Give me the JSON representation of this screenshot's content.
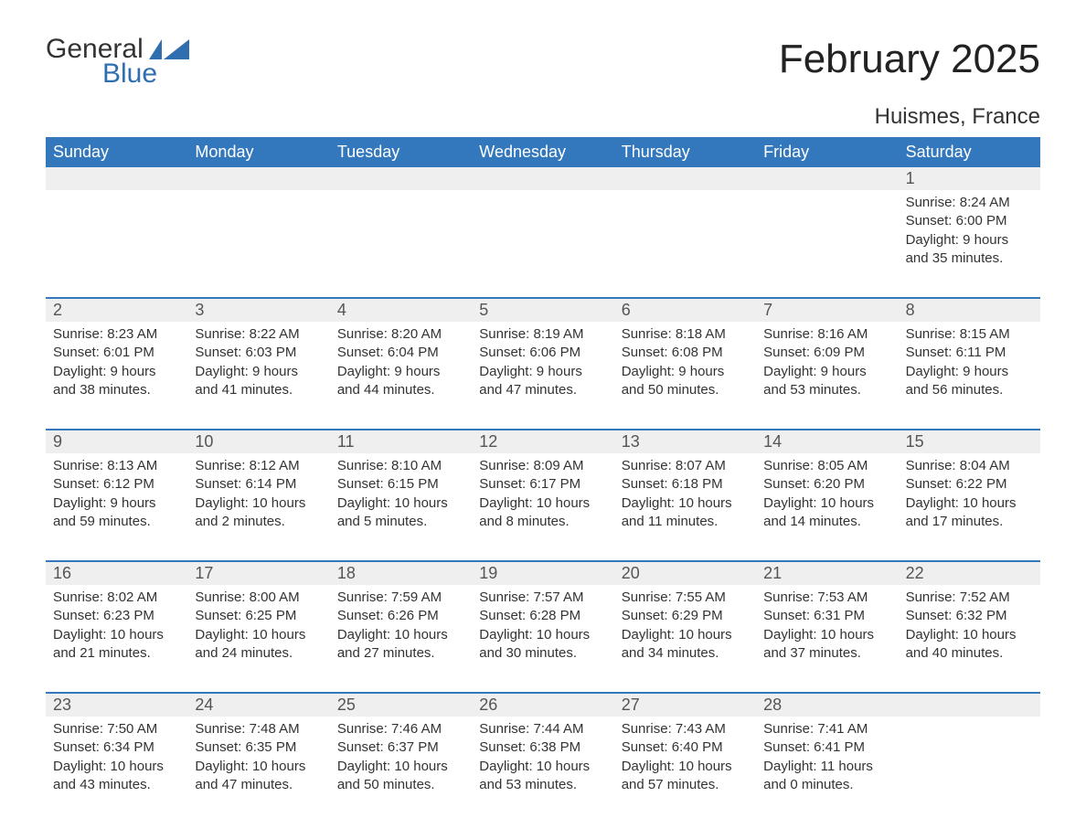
{
  "brand": {
    "general": "General",
    "blue": "Blue"
  },
  "header": {
    "month_title": "February 2025",
    "location": "Huismes, France"
  },
  "colors": {
    "header_bg": "#3378bd",
    "header_text": "#ffffff",
    "daynum_bg": "#efefef",
    "text": "#333333",
    "week_sep": "#3378bd",
    "brand_blue": "#2f6fb0",
    "brand_dark": "#333333",
    "background": "#ffffff"
  },
  "typography": {
    "title_fontsize": 44,
    "location_fontsize": 24,
    "weekday_fontsize": 18,
    "daynum_fontsize": 18,
    "detail_fontsize": 15,
    "font_family": "Arial"
  },
  "layout": {
    "cols": 7,
    "rows": 5
  },
  "weekdays": [
    "Sunday",
    "Monday",
    "Tuesday",
    "Wednesday",
    "Thursday",
    "Friday",
    "Saturday"
  ],
  "weeks": [
    {
      "nums": [
        "",
        "",
        "",
        "",
        "",
        "",
        "1"
      ],
      "cells": [
        "",
        "",
        "",
        "",
        "",
        "",
        "Sunrise: 8:24 AM\nSunset: 6:00 PM\nDaylight: 9 hours and 35 minutes."
      ]
    },
    {
      "nums": [
        "2",
        "3",
        "4",
        "5",
        "6",
        "7",
        "8"
      ],
      "cells": [
        "Sunrise: 8:23 AM\nSunset: 6:01 PM\nDaylight: 9 hours and 38 minutes.",
        "Sunrise: 8:22 AM\nSunset: 6:03 PM\nDaylight: 9 hours and 41 minutes.",
        "Sunrise: 8:20 AM\nSunset: 6:04 PM\nDaylight: 9 hours and 44 minutes.",
        "Sunrise: 8:19 AM\nSunset: 6:06 PM\nDaylight: 9 hours and 47 minutes.",
        "Sunrise: 8:18 AM\nSunset: 6:08 PM\nDaylight: 9 hours and 50 minutes.",
        "Sunrise: 8:16 AM\nSunset: 6:09 PM\nDaylight: 9 hours and 53 minutes.",
        "Sunrise: 8:15 AM\nSunset: 6:11 PM\nDaylight: 9 hours and 56 minutes."
      ]
    },
    {
      "nums": [
        "9",
        "10",
        "11",
        "12",
        "13",
        "14",
        "15"
      ],
      "cells": [
        "Sunrise: 8:13 AM\nSunset: 6:12 PM\nDaylight: 9 hours and 59 minutes.",
        "Sunrise: 8:12 AM\nSunset: 6:14 PM\nDaylight: 10 hours and 2 minutes.",
        "Sunrise: 8:10 AM\nSunset: 6:15 PM\nDaylight: 10 hours and 5 minutes.",
        "Sunrise: 8:09 AM\nSunset: 6:17 PM\nDaylight: 10 hours and 8 minutes.",
        "Sunrise: 8:07 AM\nSunset: 6:18 PM\nDaylight: 10 hours and 11 minutes.",
        "Sunrise: 8:05 AM\nSunset: 6:20 PM\nDaylight: 10 hours and 14 minutes.",
        "Sunrise: 8:04 AM\nSunset: 6:22 PM\nDaylight: 10 hours and 17 minutes."
      ]
    },
    {
      "nums": [
        "16",
        "17",
        "18",
        "19",
        "20",
        "21",
        "22"
      ],
      "cells": [
        "Sunrise: 8:02 AM\nSunset: 6:23 PM\nDaylight: 10 hours and 21 minutes.",
        "Sunrise: 8:00 AM\nSunset: 6:25 PM\nDaylight: 10 hours and 24 minutes.",
        "Sunrise: 7:59 AM\nSunset: 6:26 PM\nDaylight: 10 hours and 27 minutes.",
        "Sunrise: 7:57 AM\nSunset: 6:28 PM\nDaylight: 10 hours and 30 minutes.",
        "Sunrise: 7:55 AM\nSunset: 6:29 PM\nDaylight: 10 hours and 34 minutes.",
        "Sunrise: 7:53 AM\nSunset: 6:31 PM\nDaylight: 10 hours and 37 minutes.",
        "Sunrise: 7:52 AM\nSunset: 6:32 PM\nDaylight: 10 hours and 40 minutes."
      ]
    },
    {
      "nums": [
        "23",
        "24",
        "25",
        "26",
        "27",
        "28",
        ""
      ],
      "cells": [
        "Sunrise: 7:50 AM\nSunset: 6:34 PM\nDaylight: 10 hours and 43 minutes.",
        "Sunrise: 7:48 AM\nSunset: 6:35 PM\nDaylight: 10 hours and 47 minutes.",
        "Sunrise: 7:46 AM\nSunset: 6:37 PM\nDaylight: 10 hours and 50 minutes.",
        "Sunrise: 7:44 AM\nSunset: 6:38 PM\nDaylight: 10 hours and 53 minutes.",
        "Sunrise: 7:43 AM\nSunset: 6:40 PM\nDaylight: 10 hours and 57 minutes.",
        "Sunrise: 7:41 AM\nSunset: 6:41 PM\nDaylight: 11 hours and 0 minutes.",
        ""
      ]
    }
  ]
}
